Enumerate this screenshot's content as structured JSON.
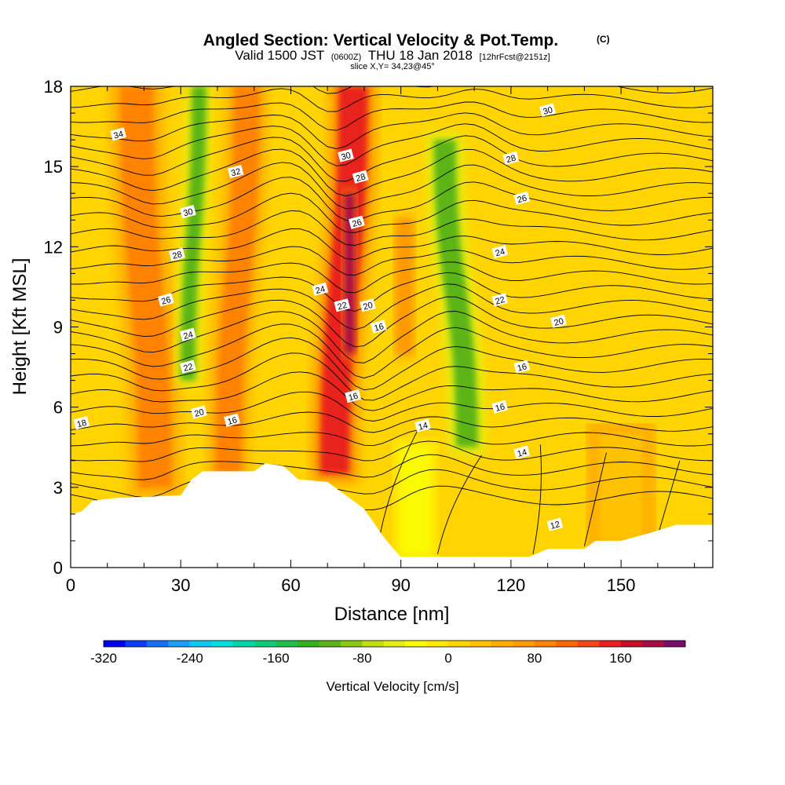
{
  "header": {
    "title": "Angled Section: Vertical Velocity & Pot.Temp.",
    "title_units": "(C)",
    "valid_prefix": "Valid 1500 JST",
    "valid_z": "(0600Z)",
    "valid_date": "THU 18 Jan 2018",
    "valid_fcst": "[12hrFcst@2151z]",
    "slice": "slice X,Y= 34,23@45°"
  },
  "chart_data": {
    "type": "heatmap",
    "xlabel": "Distance [nm]",
    "ylabel": "Height [Kft MSL]",
    "xlim": [
      0,
      175
    ],
    "ylim": [
      0,
      18
    ],
    "x_ticks": [
      "0",
      "30",
      "60",
      "90",
      "120",
      "150"
    ],
    "y_ticks": [
      "0",
      "3",
      "6",
      "9",
      "12",
      "15",
      "18"
    ],
    "x_tick_values": [
      0,
      30,
      60,
      90,
      120,
      150
    ],
    "y_tick_values": [
      0,
      3,
      6,
      9,
      12,
      15,
      18
    ],
    "terrain_nm_kft": [
      [
        0,
        2.0
      ],
      [
        3,
        2.1
      ],
      [
        6,
        2.5
      ],
      [
        12,
        2.6
      ],
      [
        30,
        2.7
      ],
      [
        33,
        3.3
      ],
      [
        36,
        3.6
      ],
      [
        50,
        3.6
      ],
      [
        53,
        3.9
      ],
      [
        58,
        3.8
      ],
      [
        62,
        3.3
      ],
      [
        70,
        3.2
      ],
      [
        75,
        2.7
      ],
      [
        80,
        2.2
      ],
      [
        85,
        1.2
      ],
      [
        88,
        0.7
      ],
      [
        90,
        0.4
      ],
      [
        125,
        0.4
      ],
      [
        130,
        0.7
      ],
      [
        140,
        0.7
      ],
      [
        143,
        1.0
      ],
      [
        150,
        1.0
      ],
      [
        158,
        1.3
      ],
      [
        165,
        1.6
      ],
      [
        175,
        1.6
      ]
    ],
    "vertical_velocity_features": [
      {
        "x_base": 23,
        "x_top": 18,
        "z_bottom": 3,
        "z_top": 18,
        "width_nm": 9,
        "value": 95
      },
      {
        "x_base": 32,
        "x_top": 35,
        "z_bottom": 7,
        "z_top": 18,
        "width_nm": 4,
        "value": -110
      },
      {
        "x_base": 43,
        "x_top": 48,
        "z_bottom": 3.5,
        "z_top": 18,
        "width_nm": 7,
        "value": 85
      },
      {
        "x_base": 72,
        "x_top": 77,
        "z_bottom": 3.5,
        "z_top": 18,
        "width_nm": 8,
        "value": 140
      },
      {
        "x_base": 76,
        "x_top": 76,
        "z_bottom": 8,
        "z_top": 14,
        "width_nm": 3,
        "value": 180
      },
      {
        "x_base": 108,
        "x_top": 102,
        "z_bottom": 4.5,
        "z_top": 16,
        "width_nm": 6,
        "value": -110
      },
      {
        "x_base": 91,
        "x_top": 91,
        "z_bottom": 8,
        "z_top": 13,
        "width_nm": 4,
        "value": 70
      },
      {
        "x_base": 94,
        "x_top": 94,
        "z_bottom": 0.5,
        "z_top": 4.5,
        "width_nm": 8,
        "value": -30
      },
      {
        "x_base": 150,
        "x_top": 150,
        "z_bottom": 1,
        "z_top": 5,
        "width_nm": 12,
        "value": 30
      }
    ],
    "theta_contours": [
      {
        "level": "12",
        "label_x": 132,
        "label_z": 1.6
      },
      {
        "level": "14",
        "label_x": 96,
        "label_z": 5.3
      },
      {
        "level": "14",
        "label_x": 123,
        "label_z": 4.3
      },
      {
        "level": "16",
        "label_x": 44,
        "label_z": 5.5
      },
      {
        "level": "16",
        "label_x": 77,
        "label_z": 6.4
      },
      {
        "level": "16",
        "label_x": 84,
        "label_z": 9.0
      },
      {
        "level": "16",
        "label_x": 117,
        "label_z": 6.0
      },
      {
        "level": "16",
        "label_x": 123,
        "label_z": 7.5
      },
      {
        "level": "18",
        "label_x": 3,
        "label_z": 5.4
      },
      {
        "level": "20",
        "label_x": 35,
        "label_z": 5.8
      },
      {
        "level": "20",
        "label_x": 81,
        "label_z": 9.8
      },
      {
        "level": "20",
        "label_x": 133,
        "label_z": 9.2
      },
      {
        "level": "22",
        "label_x": 32,
        "label_z": 7.5
      },
      {
        "level": "22",
        "label_x": 74,
        "label_z": 9.8
      },
      {
        "level": "22",
        "label_x": 117,
        "label_z": 10.0
      },
      {
        "level": "24",
        "label_x": 32,
        "label_z": 8.7
      },
      {
        "level": "24",
        "label_x": 68,
        "label_z": 10.4
      },
      {
        "level": "24",
        "label_x": 117,
        "label_z": 11.8
      },
      {
        "level": "26",
        "label_x": 26,
        "label_z": 10.0
      },
      {
        "level": "26",
        "label_x": 78,
        "label_z": 12.9
      },
      {
        "level": "26",
        "label_x": 123,
        "label_z": 13.8
      },
      {
        "level": "28",
        "label_x": 29,
        "label_z": 11.7
      },
      {
        "level": "28",
        "label_x": 79,
        "label_z": 14.6
      },
      {
        "level": "28",
        "label_x": 120,
        "label_z": 15.3
      },
      {
        "level": "30",
        "label_x": 32,
        "label_z": 13.3
      },
      {
        "level": "30",
        "label_x": 75,
        "label_z": 15.4
      },
      {
        "level": "30",
        "label_x": 130,
        "label_z": 17.1
      },
      {
        "level": "32",
        "label_x": 45,
        "label_z": 14.8
      },
      {
        "level": "34",
        "label_x": 13,
        "label_z": 16.2
      }
    ],
    "colorbar": {
      "label": "Vertical Velocity [cm/s]",
      "tick_labels": [
        "-320",
        "-240",
        "-160",
        "-80",
        "0",
        "80",
        "160"
      ],
      "tick_values": [
        -320,
        -240,
        -160,
        -80,
        0,
        80,
        160
      ],
      "range": [
        -320,
        220
      ],
      "bins": 27,
      "colors": [
        "#0000ee",
        "#0c3cf5",
        "#1670f6",
        "#1a9ff8",
        "#10c7f0",
        "#00dede",
        "#00d6a6",
        "#0ecc78",
        "#1cc04a",
        "#34b41c",
        "#5cb414",
        "#8ac812",
        "#c0de10",
        "#e4f014",
        "#fafa00",
        "#ffea00",
        "#ffd400",
        "#ffc200",
        "#ffae00",
        "#ff9a00",
        "#ff8200",
        "#ff6600",
        "#f44616",
        "#e8201e",
        "#c80c28",
        "#aa0c46",
        "#7a0c6a"
      ]
    }
  }
}
